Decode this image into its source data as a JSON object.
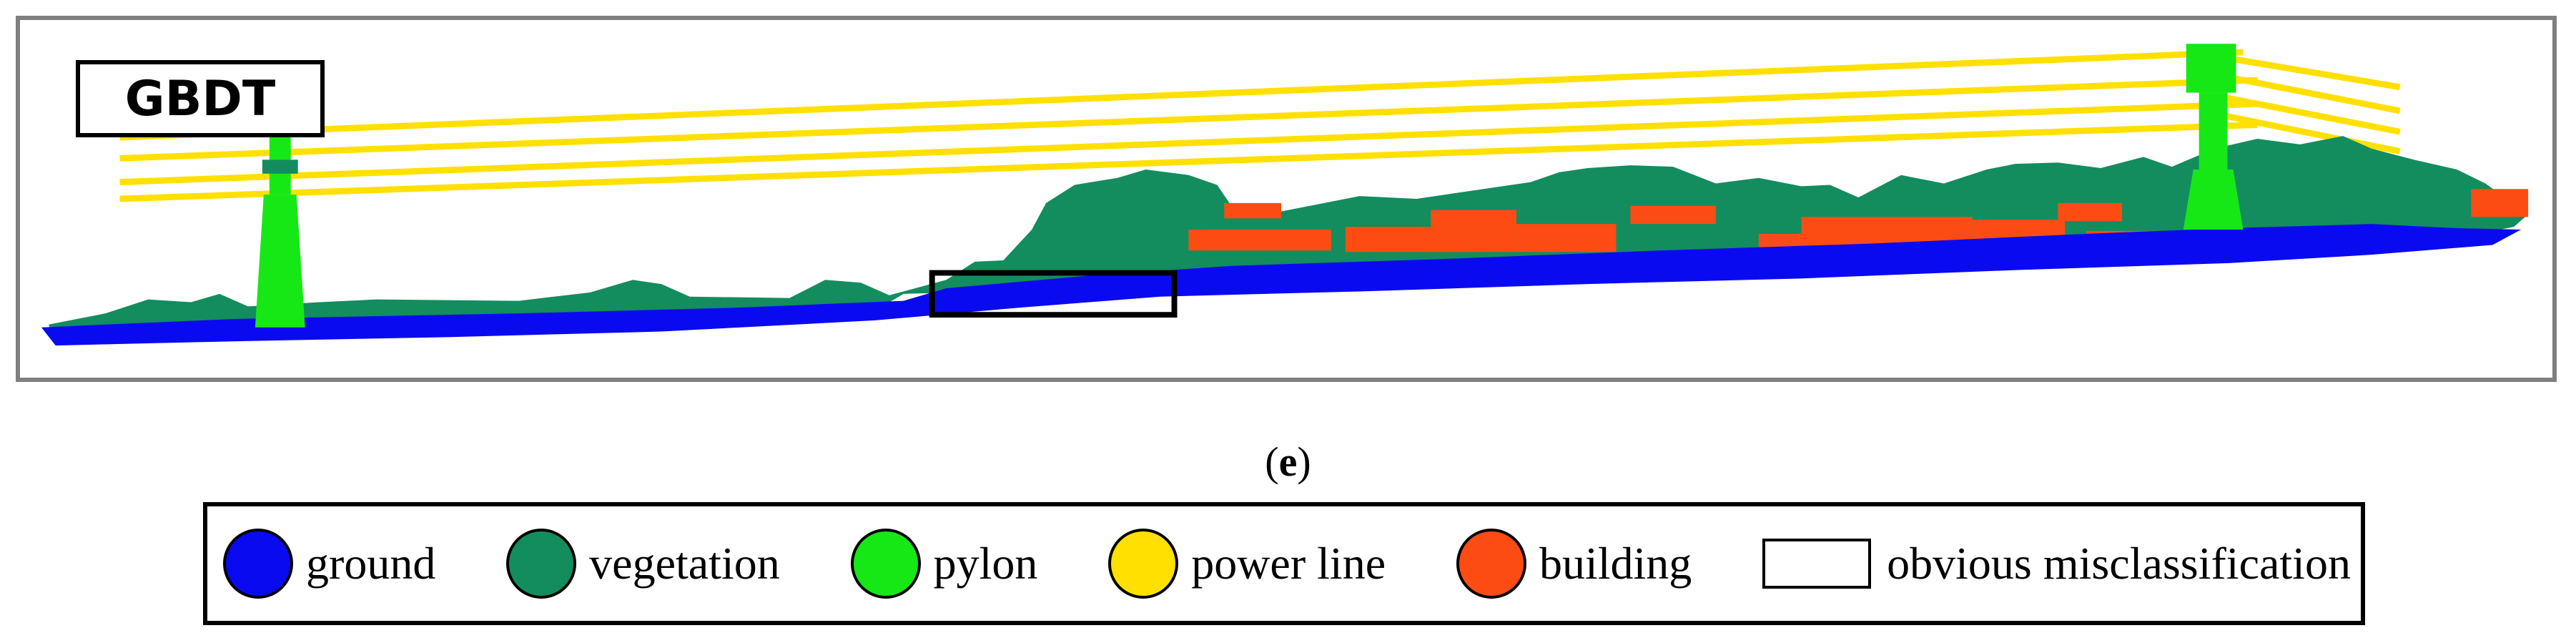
{
  "figure": {
    "method_label": "GBDT",
    "subfigure_open": "(",
    "subfigure_letter": "e",
    "subfigure_close": ")"
  },
  "colors": {
    "ground": "#0a0af0",
    "vegetation": "#138d5e",
    "pylon": "#16e816",
    "power_line": "#ffe000",
    "building": "#fc4c14",
    "frame": "#7f7f7f"
  },
  "legend": {
    "items": [
      {
        "label": "ground",
        "color": "#0a0af0",
        "shape": "circle"
      },
      {
        "label": "vegetation",
        "color": "#138d5e",
        "shape": "circle"
      },
      {
        "label": "pylon",
        "color": "#16e816",
        "shape": "circle"
      },
      {
        "label": "power line",
        "color": "#ffe000",
        "shape": "circle"
      },
      {
        "label": "building",
        "color": "#fc4c14",
        "shape": "circle"
      },
      {
        "label": "obvious misclassification",
        "color": "#ffffff",
        "shape": "rectangle"
      }
    ]
  }
}
